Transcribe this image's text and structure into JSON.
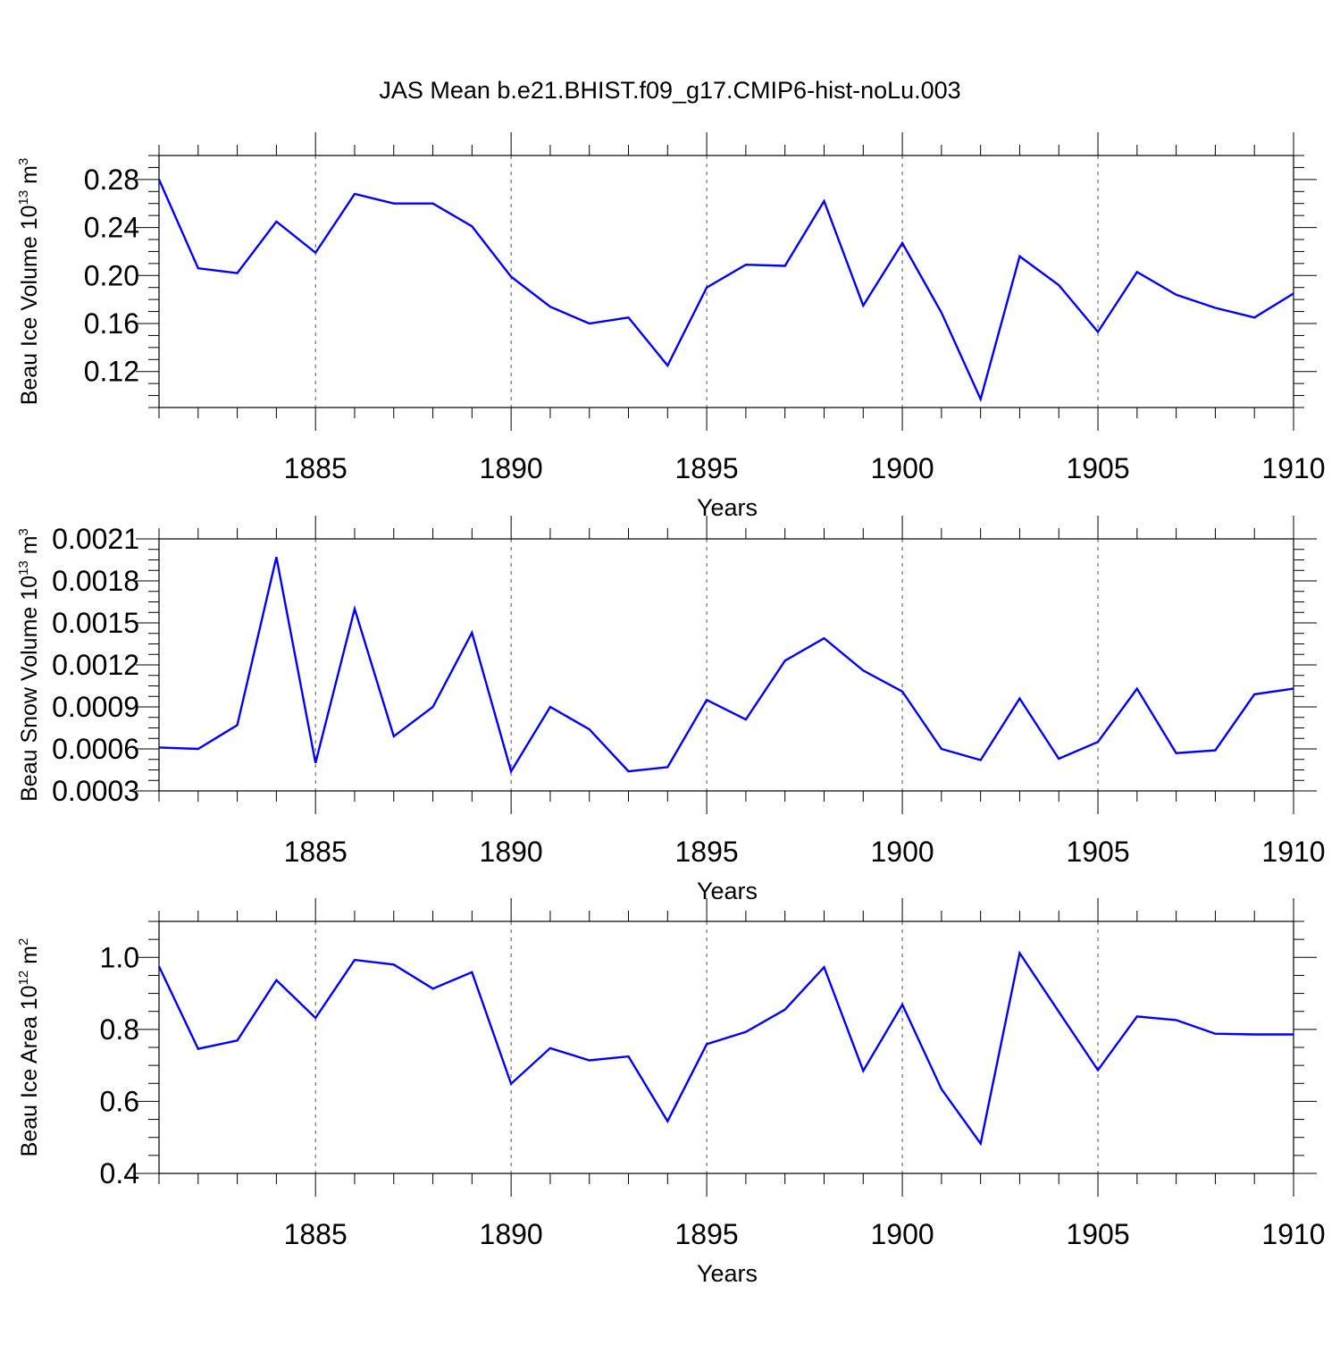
{
  "title": "JAS Mean b.e21.BHIST.f09_g17.CMIP6-hist-noLu.003",
  "colors": {
    "line": "#0000ff",
    "axis": "#000000",
    "grid": "#555555"
  },
  "chart_data": [
    {
      "type": "line",
      "title": "JAS Mean b.e21.BHIST.f09_g17.CMIP6-hist-noLu.003",
      "xlabel": "Years",
      "ylabel": {
        "text": "Beau Ice Volume 10",
        "exp": "13",
        "unit": " m",
        "unit_exp": "3"
      },
      "xlim": [
        1881,
        1910
      ],
      "ylim": [
        0.09,
        0.3
      ],
      "xticks": [
        "1885",
        "1890",
        "1895",
        "1900",
        "1905",
        "1910"
      ],
      "yticks": [
        "0.12",
        "0.16",
        "0.20",
        "0.24",
        "0.28"
      ],
      "grid": "vertical dashed at major x ticks",
      "x": [
        1881,
        1882,
        1883,
        1884,
        1885,
        1886,
        1887,
        1888,
        1889,
        1890,
        1891,
        1892,
        1893,
        1894,
        1895,
        1896,
        1897,
        1898,
        1899,
        1900,
        1901,
        1902,
        1903,
        1904,
        1905,
        1906,
        1907,
        1908,
        1909,
        1910
      ],
      "series": [
        {
          "name": "Beau Ice Volume",
          "values": [
            0.28,
            0.206,
            0.202,
            0.245,
            0.219,
            0.268,
            0.26,
            0.26,
            0.241,
            0.199,
            0.174,
            0.16,
            0.165,
            0.125,
            0.19,
            0.209,
            0.208,
            0.262,
            0.175,
            0.227,
            0.169,
            0.097,
            0.216,
            0.192,
            0.153,
            0.203,
            0.184,
            0.173,
            0.165,
            0.185
          ]
        }
      ]
    },
    {
      "type": "line",
      "xlabel": "Years",
      "ylabel": {
        "text": "Beau Snow Volume 10",
        "exp": "13",
        "unit": " m",
        "unit_exp": "3"
      },
      "xlim": [
        1881,
        1910
      ],
      "ylim": [
        0.0003,
        0.0021
      ],
      "xticks": [
        "1885",
        "1890",
        "1895",
        "1900",
        "1905",
        "1910"
      ],
      "yticks": [
        "0.0003",
        "0.0006",
        "0.0009",
        "0.0012",
        "0.0015",
        "0.0018",
        "0.0021"
      ],
      "grid": "vertical dashed at major x ticks",
      "x": [
        1881,
        1882,
        1883,
        1884,
        1885,
        1886,
        1887,
        1888,
        1889,
        1890,
        1891,
        1892,
        1893,
        1894,
        1895,
        1896,
        1897,
        1898,
        1899,
        1900,
        1901,
        1902,
        1903,
        1904,
        1905,
        1906,
        1907,
        1908,
        1909,
        1910
      ],
      "series": [
        {
          "name": "Beau Snow Volume",
          "values": [
            0.00061,
            0.0006,
            0.00077,
            0.00197,
            0.0005,
            0.0016,
            0.00069,
            0.0009,
            0.00143,
            0.00044,
            0.0009,
            0.00074,
            0.00044,
            0.00047,
            0.00095,
            0.00081,
            0.00123,
            0.00139,
            0.00116,
            0.00101,
            0.0006,
            0.00052,
            0.00096,
            0.00053,
            0.00065,
            0.00103,
            0.00057,
            0.00059,
            0.00099,
            0.00103
          ]
        }
      ]
    },
    {
      "type": "line",
      "xlabel": "Years",
      "ylabel": {
        "text": "Beau Ice Area 10",
        "exp": "12",
        "unit": " m",
        "unit_exp": "2"
      },
      "xlim": [
        1881,
        1910
      ],
      "ylim": [
        0.4,
        1.1
      ],
      "xticks": [
        "1885",
        "1890",
        "1895",
        "1900",
        "1905",
        "1910"
      ],
      "yticks": [
        "0.4",
        "0.6",
        "0.8",
        "1.0"
      ],
      "grid": "vertical dashed at major x ticks",
      "x": [
        1881,
        1882,
        1883,
        1884,
        1885,
        1886,
        1887,
        1888,
        1889,
        1890,
        1891,
        1892,
        1893,
        1894,
        1895,
        1896,
        1897,
        1898,
        1899,
        1900,
        1901,
        1902,
        1903,
        1904,
        1905,
        1906,
        1907,
        1908,
        1909,
        1910
      ],
      "series": [
        {
          "name": "Beau Ice Area",
          "values": [
            0.975,
            0.746,
            0.769,
            0.937,
            0.832,
            0.993,
            0.98,
            0.913,
            0.959,
            0.649,
            0.748,
            0.714,
            0.725,
            0.545,
            0.759,
            0.793,
            0.855,
            0.973,
            0.685,
            0.869,
            0.634,
            0.483,
            1.012,
            0.849,
            0.687,
            0.836,
            0.826,
            0.788,
            0.786,
            0.786
          ]
        }
      ]
    }
  ]
}
